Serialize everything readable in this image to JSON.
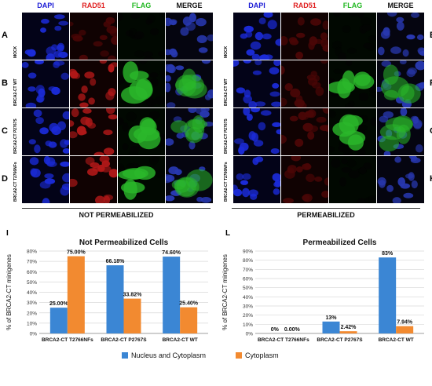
{
  "left_figure": {
    "columns": [
      {
        "label": "DAPI",
        "color": "#1a1ad6"
      },
      {
        "label": "RAD51",
        "color": "#e02020"
      },
      {
        "label": "FLAG",
        "color": "#22b822"
      },
      {
        "label": "MERGE",
        "color": "#111111"
      }
    ],
    "rows": [
      {
        "letter": "A",
        "label": "MOCK"
      },
      {
        "letter": "B",
        "label": "BRCA2-CT WT"
      },
      {
        "letter": "C",
        "label": "BRCA2-CT P2767S"
      },
      {
        "letter": "D",
        "label": "BRCA2-CT T2766NFs"
      }
    ],
    "caption": "NOT PERMEABILIZED"
  },
  "right_figure": {
    "columns": [
      {
        "label": "DAPI",
        "color": "#1a1ad6"
      },
      {
        "label": "RAD51",
        "color": "#e02020"
      },
      {
        "label": "FLAG",
        "color": "#22b822"
      },
      {
        "label": "MERGE",
        "color": "#111111"
      }
    ],
    "rows": [
      {
        "letter": "E",
        "label": "MOCK"
      },
      {
        "letter": "F",
        "label": "BRCA2-CT WT"
      },
      {
        "letter": "G",
        "label": "BRCA2-CT P2767S"
      },
      {
        "letter": "H",
        "label": "BRCA2-CT T2766NFs"
      }
    ],
    "caption": "PERMEABILIZED"
  },
  "chart_letters": {
    "left": "I",
    "right": "L"
  },
  "legend": [
    {
      "label": "Nucleus and Cytoplasm",
      "color": "#3b86d4"
    },
    {
      "label": "Cytoplasm",
      "color": "#f28a30"
    }
  ],
  "chart_data": [
    {
      "type": "bar",
      "title": "Not Permeabilized Cells",
      "ylabel": "% of BRCA2-CT minigenes",
      "categories": [
        "BRCA2-CT T2766NFs",
        "BRCA2-CT P2767S",
        "BRCA2-CT WT"
      ],
      "series": [
        {
          "name": "Nucleus and Cytoplasm",
          "values": [
            25.0,
            66.18,
            74.6
          ],
          "labels": [
            "25.00%",
            "66.18%",
            "74.60%"
          ],
          "color": "#3b86d4"
        },
        {
          "name": "Cytoplasm",
          "values": [
            75.0,
            33.82,
            25.4
          ],
          "labels": [
            "75.00%",
            "33.82%",
            "25.40%"
          ],
          "color": "#f28a30"
        }
      ],
      "ylim": [
        0,
        80
      ],
      "yticks": [
        "0%",
        "10%",
        "20%",
        "30%",
        "40%",
        "50%",
        "60%",
        "70%",
        "80%"
      ],
      "grid": true
    },
    {
      "type": "bar",
      "title": "Permeabilized Cells",
      "ylabel": "% of BRCA2-CT minigenes",
      "categories": [
        "BRCA2-CT T2766NFs",
        "BRCA2-CT P2767S",
        "BRCA2-CT WT"
      ],
      "series": [
        {
          "name": "Nucleus and Cytoplasm",
          "values": [
            0,
            13,
            83
          ],
          "labels": [
            "0%",
            "13%",
            "83%"
          ],
          "color": "#3b86d4"
        },
        {
          "name": "Cytoplasm",
          "values": [
            0,
            2.42,
            7.94
          ],
          "labels": [
            "0.00%",
            "2.42%",
            "7.94%"
          ],
          "color": "#f28a30"
        }
      ],
      "ylim": [
        0,
        90
      ],
      "yticks": [
        "0%",
        "10%",
        "20%",
        "30%",
        "40%",
        "50%",
        "60%",
        "70%",
        "80%",
        "90%"
      ],
      "grid": true
    }
  ]
}
